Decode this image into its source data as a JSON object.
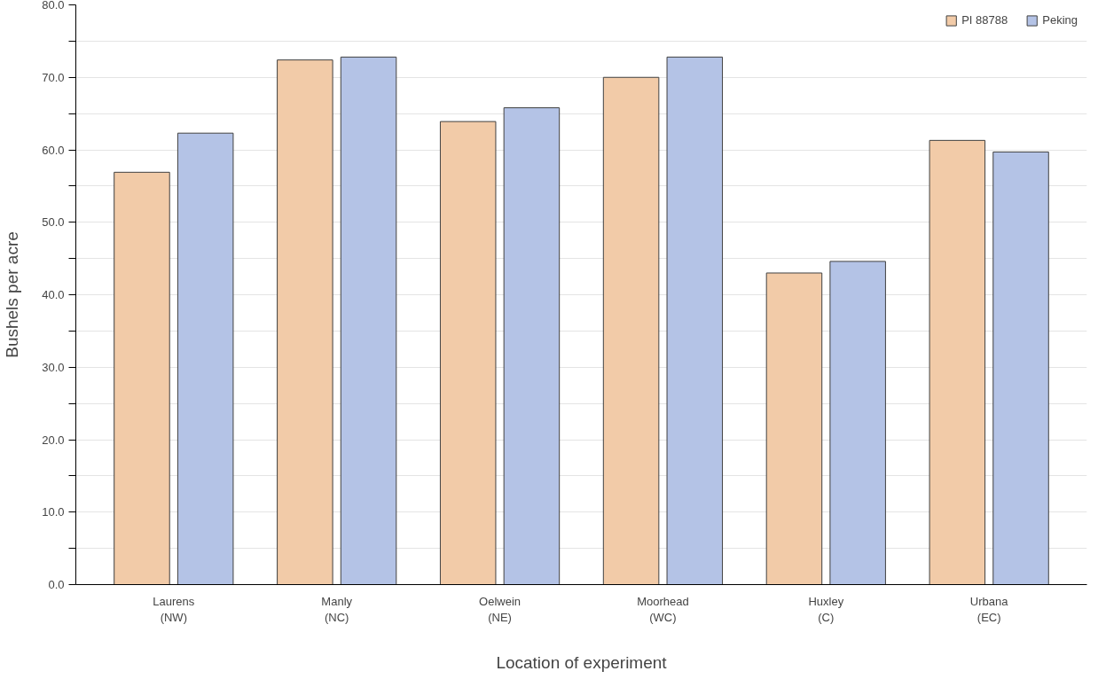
{
  "chart_data": {
    "type": "bar",
    "xlabel": "Location of experiment",
    "ylabel": "Bushels per acre",
    "categories": [
      "Laurens\n(NW)",
      "Manly\n(NC)",
      "Oelwein\n(NE)",
      "Moorhead\n(WC)",
      "Huxley\n(C)",
      "Urbana\n(EC)"
    ],
    "series": [
      {
        "name": "PI 88788",
        "color": "#f2cba8",
        "values": [
          56.9,
          72.4,
          63.9,
          70.0,
          43.0,
          61.3
        ]
      },
      {
        "name": "Peking",
        "color": "#b4c3e6",
        "values": [
          62.3,
          72.8,
          65.8,
          72.8,
          44.6,
          59.7
        ]
      }
    ],
    "ylim": [
      0,
      80
    ],
    "yticks": [
      {
        "value": 0,
        "label": "0.0"
      },
      {
        "value": 5,
        "label": null
      },
      {
        "value": 10,
        "label": "10.0"
      },
      {
        "value": 15,
        "label": null
      },
      {
        "value": 20,
        "label": "20.0"
      },
      {
        "value": 25,
        "label": null
      },
      {
        "value": 30,
        "label": "30.0"
      },
      {
        "value": 35,
        "label": null
      },
      {
        "value": 40,
        "label": "40.0"
      },
      {
        "value": 45,
        "label": null
      },
      {
        "value": 50,
        "label": "50.0"
      },
      {
        "value": 55,
        "label": null
      },
      {
        "value": 60,
        "label": "60.0"
      },
      {
        "value": 65,
        "label": null
      },
      {
        "value": 70,
        "label": "70.0"
      },
      {
        "value": 75,
        "label": null
      },
      {
        "value": 80,
        "label": "80.0"
      }
    ],
    "grid": "y",
    "legend": "top right"
  }
}
